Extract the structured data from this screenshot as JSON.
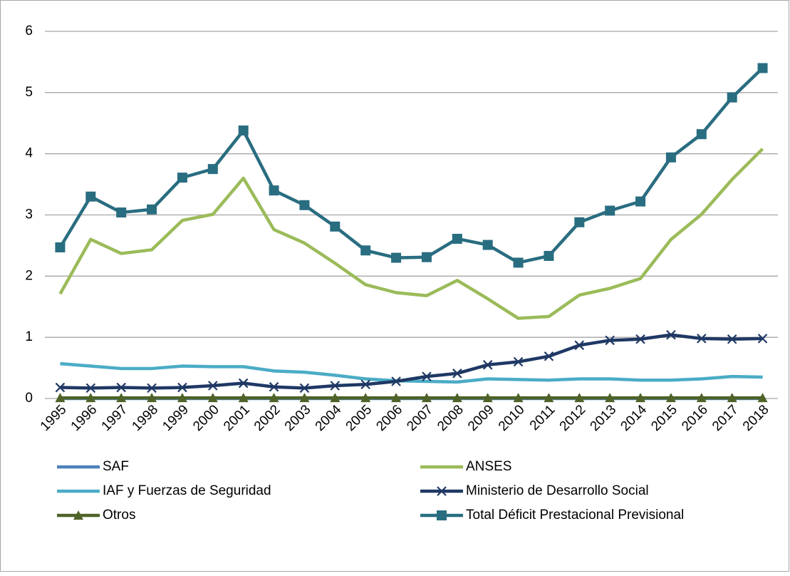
{
  "chart_data": {
    "type": "line",
    "categories": [
      "1995",
      "1996",
      "1997",
      "1998",
      "1999",
      "2000",
      "2001",
      "2002",
      "2003",
      "2004",
      "2005",
      "2006",
      "2007",
      "2008",
      "2009",
      "2010",
      "2011",
      "2012",
      "2013",
      "2014",
      "2015",
      "2016",
      "2017",
      "2018"
    ],
    "series": [
      {
        "name": "SAF",
        "color": "#4f81bd",
        "marker": "none",
        "values": [
          0,
          0,
          0,
          0,
          0,
          0,
          0,
          0,
          0,
          0,
          0,
          0,
          0,
          0,
          0,
          0,
          0,
          0,
          0,
          0,
          0,
          0,
          0,
          0
        ]
      },
      {
        "name": "ANSES",
        "color": "#9bbb59",
        "marker": "none",
        "values": [
          1.71,
          2.6,
          2.37,
          2.43,
          2.91,
          3.01,
          3.6,
          2.76,
          2.54,
          2.21,
          1.86,
          1.73,
          1.68,
          1.93,
          1.63,
          1.31,
          1.34,
          1.69,
          1.8,
          1.96,
          2.6,
          3.01,
          3.58,
          4.08
        ]
      },
      {
        "name": "IAF y Fuerzas de Seguridad",
        "color": "#4bacc6",
        "marker": "none",
        "values": [
          0.57,
          0.53,
          0.49,
          0.49,
          0.53,
          0.52,
          0.52,
          0.45,
          0.43,
          0.38,
          0.32,
          0.29,
          0.28,
          0.27,
          0.32,
          0.31,
          0.3,
          0.32,
          0.32,
          0.3,
          0.3,
          0.32,
          0.36,
          0.35
        ]
      },
      {
        "name": "Ministerio de Desarrollo Social",
        "color": "#1f3864",
        "marker": "x",
        "values": [
          0.18,
          0.17,
          0.18,
          0.17,
          0.18,
          0.21,
          0.25,
          0.19,
          0.17,
          0.21,
          0.23,
          0.28,
          0.36,
          0.41,
          0.55,
          0.6,
          0.69,
          0.87,
          0.95,
          0.97,
          1.04,
          0.98,
          0.97,
          0.98
        ]
      },
      {
        "name": "Otros",
        "color": "#4f6228",
        "marker": "triangle",
        "values": [
          0.01,
          0.01,
          0.01,
          0.01,
          0.01,
          0.01,
          0.01,
          0.01,
          0.01,
          0.01,
          0.01,
          0.01,
          0.01,
          0.01,
          0.01,
          0.01,
          0.01,
          0.01,
          0.01,
          0.01,
          0.01,
          0.01,
          0.01,
          0.01
        ]
      },
      {
        "name": "Total Déficit Prestacional Previsional",
        "color": "#296d80",
        "marker": "square",
        "values": [
          2.47,
          3.3,
          3.04,
          3.09,
          3.61,
          3.75,
          4.38,
          3.4,
          3.16,
          2.81,
          2.42,
          2.3,
          2.31,
          2.61,
          2.51,
          2.22,
          2.33,
          2.88,
          3.07,
          3.22,
          3.94,
          4.32,
          4.92,
          5.4
        ]
      }
    ],
    "ylim": [
      0,
      6
    ],
    "yticks": [
      0,
      1,
      2,
      3,
      4,
      5,
      6
    ],
    "grid": true,
    "legend": "bottom"
  }
}
